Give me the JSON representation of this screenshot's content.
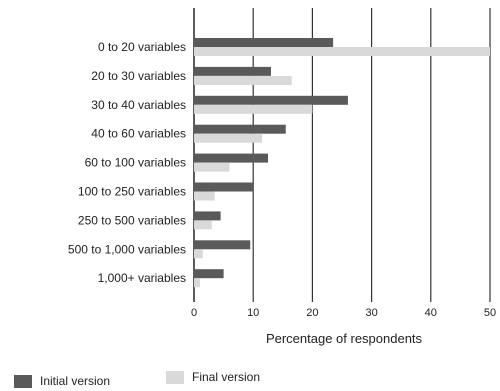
{
  "chart_data": {
    "type": "bar",
    "orientation": "horizontal",
    "categories": [
      "0 to 20 variables",
      "20 to 30 variables",
      "30 to 40 variables",
      "40 to 60 variables",
      "60 to 100 variables",
      "100 to 250 variables",
      "250 to 500 variables",
      "500 to 1,000 variables",
      "1,000+ variables"
    ],
    "series": [
      {
        "name": "Initial version",
        "color": "#5a5a5a",
        "values": [
          23.5,
          13,
          26,
          15.5,
          12.5,
          10,
          4.5,
          9.5,
          5
        ]
      },
      {
        "name": "Final version",
        "color": "#d9d9d9",
        "values": [
          50,
          16.5,
          20,
          11.5,
          6,
          3.5,
          3,
          1.5,
          1
        ]
      }
    ],
    "xlabel": "Percentage of respondents",
    "xlim": [
      0,
      50
    ],
    "xticks": [
      0,
      10,
      20,
      30,
      40,
      50
    ],
    "grid": "vertical",
    "legend_position": "bottom"
  }
}
